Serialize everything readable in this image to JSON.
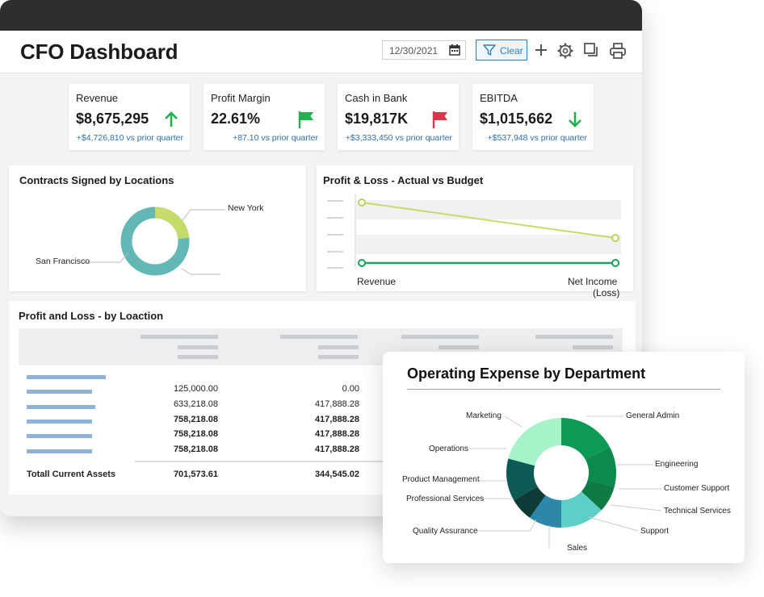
{
  "header": {
    "title": "CFO Dashboard",
    "date_value": "12/30/2021",
    "clear_label": "Clear"
  },
  "kpis": [
    {
      "label": "Revenue",
      "value": "$8,675,295",
      "delta": "+$4,726,810 vs prior quarter",
      "indicator": "arrow-up-icon",
      "color": "#22b14c"
    },
    {
      "label": "Profit Margin",
      "value": "22.61%",
      "delta": "+87.10 vs prior quarter",
      "indicator": "flag-icon",
      "color": "#22b14c"
    },
    {
      "label": "Cash in Bank",
      "value": "$19,817K",
      "delta": "+$3,333,450 vs prior quarter",
      "indicator": "flag-icon",
      "color": "#d9364a"
    },
    {
      "label": "EBITDA",
      "value": "$1,015,662",
      "delta": "+$537,948 vs prior quarter",
      "indicator": "arrow-down-icon",
      "color": "#22b14c"
    }
  ],
  "contracts": {
    "title": "Contracts Signed by Locations",
    "labels": [
      "New York",
      "San Francisco"
    ],
    "colors": {
      "new_york": "#c5dc6a",
      "san_francisco": "#63b8b5"
    }
  },
  "profit_loss_chart": {
    "title": "Profit & Loss - Actual vs Budget",
    "x_labels": [
      "Revenue",
      "Net Income",
      "(Loss)"
    ]
  },
  "pl_table": {
    "title": "Profit and Loss - by Loaction",
    "col1": [
      "125,000.00",
      "633,218.08",
      "758,218.08",
      "758,218.08",
      "758,218.08"
    ],
    "col2": [
      "0.00",
      "417,888.28",
      "417,888.28",
      "417,888.28",
      "417,888.28"
    ],
    "bold_rows": [
      false,
      false,
      true,
      true,
      true
    ],
    "total_label": "Totall Current Assets",
    "total_col1": "701,573.61",
    "total_col2": "344,545.02"
  },
  "opex": {
    "title": "Operating Expense by Department",
    "left_labels": [
      "Marketing",
      "Operations",
      "Product Management",
      "Professional Services",
      "Quality Assurance",
      "Sales"
    ],
    "right_labels": [
      "General Admin",
      "Engineering",
      "Customer Support",
      "Technical Services",
      "Support"
    ],
    "colors": [
      "#0d9a55",
      "#0b8a4c",
      "#0e7a44",
      "#5ccfc6",
      "#2d87a8",
      "#0e3a37",
      "#0c5a56",
      "#a6f2c9"
    ]
  },
  "icons": [
    "calendar-icon",
    "filter-icon",
    "plus-icon",
    "gear-icon",
    "window-icon",
    "printer-icon"
  ]
}
